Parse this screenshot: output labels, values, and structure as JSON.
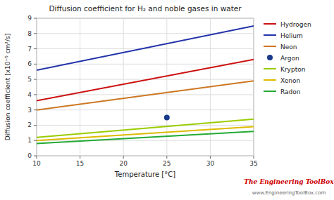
{
  "chart_data": {
    "type": "line",
    "title": "Diffusion coefficient for H₂ and noble gases in water",
    "xlabel": "Temperature [°C]",
    "ylabel": "Diffusion coefficient [x10⁻⁵ cm²/s]",
    "xlim": [
      10,
      35
    ],
    "ylim": [
      0.0,
      9.0
    ],
    "xticks": [
      10,
      15,
      20,
      25,
      30,
      35
    ],
    "yticks": [
      0,
      1,
      2,
      3,
      4,
      5,
      6,
      7,
      8,
      9
    ],
    "grid": true,
    "legend": "right",
    "series": [
      {
        "name": "Hydrogen",
        "color": "#cc1111",
        "x": [
          10,
          35
        ],
        "values": [
          3.6,
          6.3
        ]
      },
      {
        "name": "Helium",
        "color": "#2233aa",
        "x": [
          10,
          35
        ],
        "values": [
          5.6,
          8.5
        ]
      },
      {
        "name": "Neon",
        "color": "#cc7722",
        "x": [
          10,
          35
        ],
        "values": [
          3.0,
          4.9
        ]
      },
      {
        "name": "Argon",
        "type": "scatter",
        "marker": "circle",
        "color": "#1a3a8a",
        "x": [
          25
        ],
        "values": [
          2.5
        ]
      },
      {
        "name": "Krypton",
        "color": "#99cc00",
        "x": [
          10,
          35
        ],
        "values": [
          1.2,
          2.4
        ]
      },
      {
        "name": "Xenon",
        "color": "#ddbb00",
        "x": [
          10,
          35
        ],
        "values": [
          1.0,
          1.9
        ]
      },
      {
        "name": "Radon",
        "color": "#22aa33",
        "x": [
          10,
          35
        ],
        "values": [
          0.8,
          1.6
        ]
      }
    ],
    "annotations": [
      {
        "text": "The Engineering ToolBox",
        "color": "#cc0000"
      },
      {
        "text": "www.EngineeringToolBox.com",
        "color": "#666666"
      }
    ]
  }
}
